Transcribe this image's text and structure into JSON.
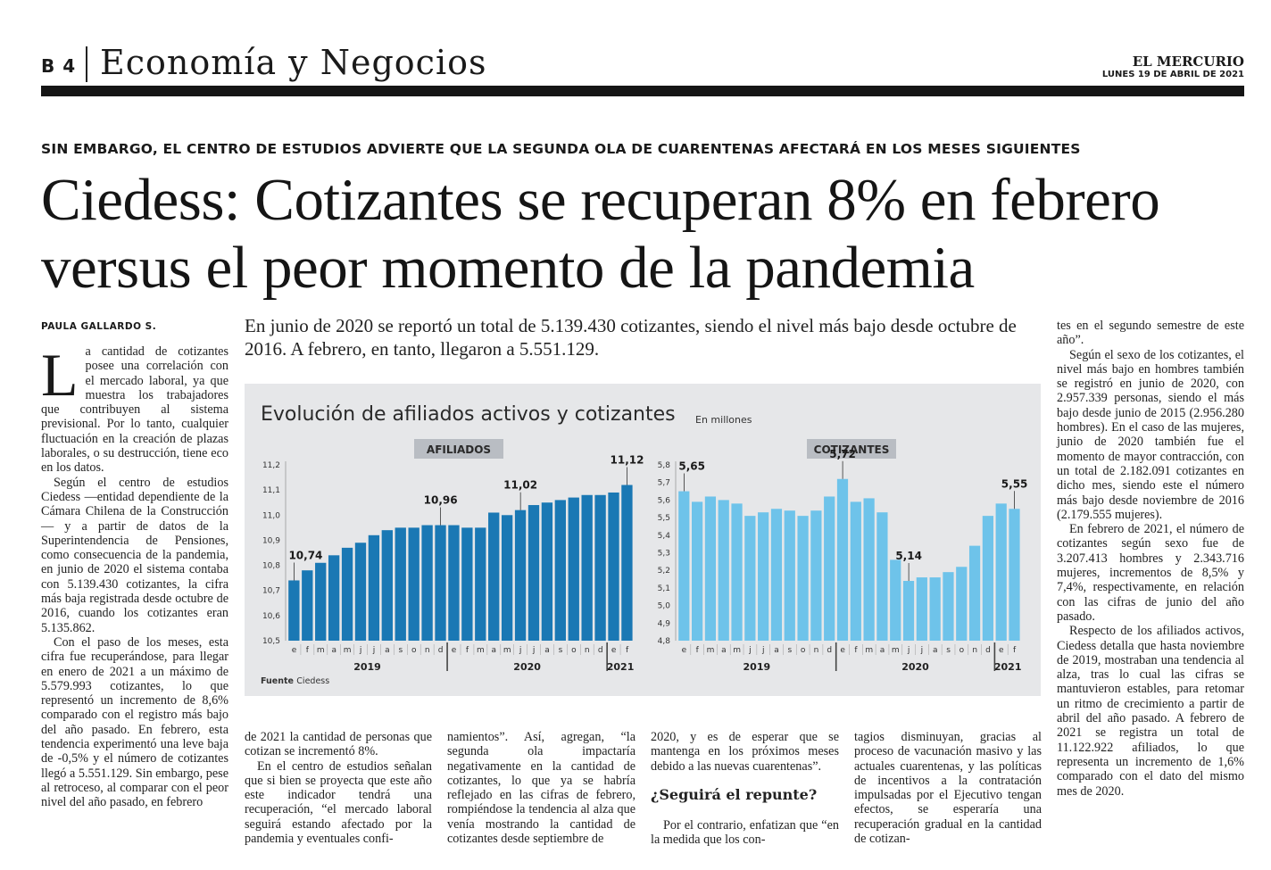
{
  "header": {
    "page": "B 4",
    "section": "Economía y Negocios",
    "newspaper": "EL MERCURIO",
    "date": "LUNES 19 DE ABRIL DE 2021"
  },
  "article": {
    "kicker": "SIN EMBARGO, EL CENTRO DE ESTUDIOS ADVIERTE QUE LA SEGUNDA OLA DE CUARENTENAS AFECTARÁ EN LOS MESES SIGUIENTES",
    "headline": "Ciedess: Cotizantes se recuperan 8% en febrero versus el peor momento de la pandemia",
    "byline": "PAULA GALLARDO S.",
    "lead": "En junio de 2020 se reportó un total de 5.139.430 cotizantes, siendo el nivel más bajo desde octubre de 2016. A febrero, en tanto, llegaron a 5.551.129.",
    "col1": {
      "dropcap": "L",
      "p1": "a cantidad de cotizantes posee una correlación con el mercado laboral, ya que muestra los trabajadores que contribuyen al sistema previsional. Por lo tanto, cualquier fluctuación en la creación de plazas laborales, o su destrucción, tiene eco en los datos.",
      "p2": "Según el centro de estudios Ciedess —entidad dependiente de la Cámara Chilena de la Construcción— y a partir de datos de la Superintendencia de Pensiones, como consecuencia de la pandemia, en junio de 2020 el sistema contaba con 5.139.430 cotizantes, la cifra más baja registrada desde octubre de 2016, cuando los cotizantes eran 5.135.862.",
      "p3": "Con el paso de los meses, esta cifra fue recuperándose, para llegar en enero de 2021 a un máximo de 5.579.993 cotizantes, lo que representó un incremento de 8,6% comparado con el registro más bajo del año pasado. En febrero, esta tendencia experimentó una leve baja de -0,5% y el número de cotizantes llegó a 5.551.129. Sin embargo, pese al retroceso, al comparar con el peor nivel del año pasado, en febrero"
    },
    "col2": {
      "p1": "de 2021 la cantidad de personas que cotizan se incrementó 8%.",
      "p2": "En el centro de estudios señalan que si bien se proyecta que este año este indicador tendrá una recuperación, “el mercado laboral seguirá estando afectado por la pandemia y eventuales confi-"
    },
    "col3": {
      "p1": "namientos”. Así, agregan, “la segunda ola impactaría negativamente en la cantidad de cotizantes, lo que ya se habría reflejado en las cifras de febrero, rompiéndose la tendencia al alza que venía mostrando la cantidad de cotizantes desde septiembre de"
    },
    "col4": {
      "p1": "2020, y es de esperar que se mantenga en los próximos meses debido a las nuevas cuarentenas”.",
      "subhead": "¿Seguirá el repunte?",
      "p2": "Por el contrario, enfatizan que “en la medida que los con-"
    },
    "col5": {
      "p1": "tagios disminuyan, gracias al proceso de vacunación masivo y las actuales cuarentenas, y las políticas de incentivos a la contratación impulsadas por el Ejecutivo tengan efectos, se esperaría una recuperación gradual en la cantidad de cotizan-"
    },
    "col6": {
      "p1": "tes en el segundo semestre de este año”.",
      "p2": "Según el sexo de los cotizantes, el nivel más bajo en hombres también se registró en junio de 2020, con 2.957.339 personas, siendo el más bajo desde junio de 2015 (2.956.280 hombres). En el caso de las mujeres, junio de 2020 también fue el momento de mayor contracción, con un total de 2.182.091 cotizantes en dicho mes, siendo este el número más bajo desde noviembre de 2016 (2.179.555 mujeres).",
      "p3": "En febrero de 2021, el número de cotizantes según sexo fue de 3.207.413 hombres y 2.343.716 mujeres, incrementos de 8,5% y 7,4%, respectivamente, en relación con las cifras de junio del año pasado.",
      "p4": "Respecto de los afiliados activos, Ciedess detalla que hasta noviembre de 2019, mostraban una tendencia al alza, tras lo cual las cifras se mantuvieron estables, para retomar un ritmo de crecimiento a partir de abril del año pasado. A febrero de 2021 se registra un total de 11.122.922 afiliados, lo que representa un incremento de 1,6% comparado con el dato del mismo mes de 2020."
    }
  },
  "chart_meta": {
    "title": "Evolución de afiliados activos y cotizantes",
    "unit": "En millones",
    "source_label": "Fuente",
    "source_value": "Ciedess",
    "bar_color_afiliados": "#1a78b4",
    "bar_color_cotizantes": "#6ec3ea",
    "panel_bg": "#e6e7e9",
    "label_bg": "#b9bdc3"
  },
  "chart_data": [
    {
      "type": "bar",
      "title": "AFILIADOS",
      "categories": [
        "e",
        "f",
        "m",
        "a",
        "m",
        "j",
        "j",
        "a",
        "s",
        "o",
        "n",
        "d",
        "e",
        "f",
        "m",
        "a",
        "m",
        "j",
        "j",
        "a",
        "s",
        "o",
        "n",
        "d",
        "e",
        "f"
      ],
      "year_labels": [
        "2019",
        "2020",
        "2021"
      ],
      "ylim": [
        10.5,
        11.2
      ],
      "yticks": [
        "10,5",
        "10,6",
        "10,7",
        "10,8",
        "10,9",
        "11,0",
        "11,1",
        "11,2"
      ],
      "values": [
        10.74,
        10.78,
        10.81,
        10.84,
        10.87,
        10.89,
        10.92,
        10.94,
        10.95,
        10.95,
        10.96,
        10.96,
        10.96,
        10.95,
        10.95,
        11.01,
        11.0,
        11.02,
        11.04,
        11.05,
        11.06,
        11.07,
        11.08,
        11.08,
        11.09,
        11.12
      ],
      "data_labels": [
        {
          "index": 0,
          "text": "10,74"
        },
        {
          "index": 11,
          "text": "10,96"
        },
        {
          "index": 17,
          "text": "11,02"
        },
        {
          "index": 25,
          "text": "11,12"
        }
      ]
    },
    {
      "type": "bar",
      "title": "COTIZANTES",
      "categories": [
        "e",
        "f",
        "m",
        "a",
        "m",
        "j",
        "j",
        "a",
        "s",
        "o",
        "n",
        "d",
        "e",
        "f",
        "m",
        "a",
        "m",
        "j",
        "j",
        "a",
        "s",
        "o",
        "n",
        "d",
        "e",
        "f"
      ],
      "year_labels": [
        "2019",
        "2020",
        "2021"
      ],
      "ylim": [
        4.8,
        5.8
      ],
      "yticks": [
        "4,8",
        "4,9",
        "5,0",
        "5,1",
        "5,2",
        "5,3",
        "5,4",
        "5,5",
        "5,6",
        "5,7",
        "5,8"
      ],
      "values": [
        5.65,
        5.59,
        5.62,
        5.6,
        5.58,
        5.51,
        5.53,
        5.55,
        5.54,
        5.51,
        5.54,
        5.62,
        5.72,
        5.59,
        5.61,
        5.53,
        5.26,
        5.14,
        5.16,
        5.16,
        5.19,
        5.22,
        5.34,
        5.51,
        5.58,
        5.55
      ],
      "data_labels": [
        {
          "index": 0,
          "text": "5,65"
        },
        {
          "index": 12,
          "text": "5,72"
        },
        {
          "index": 17,
          "text": "5,14"
        },
        {
          "index": 25,
          "text": "5,55"
        }
      ]
    }
  ]
}
